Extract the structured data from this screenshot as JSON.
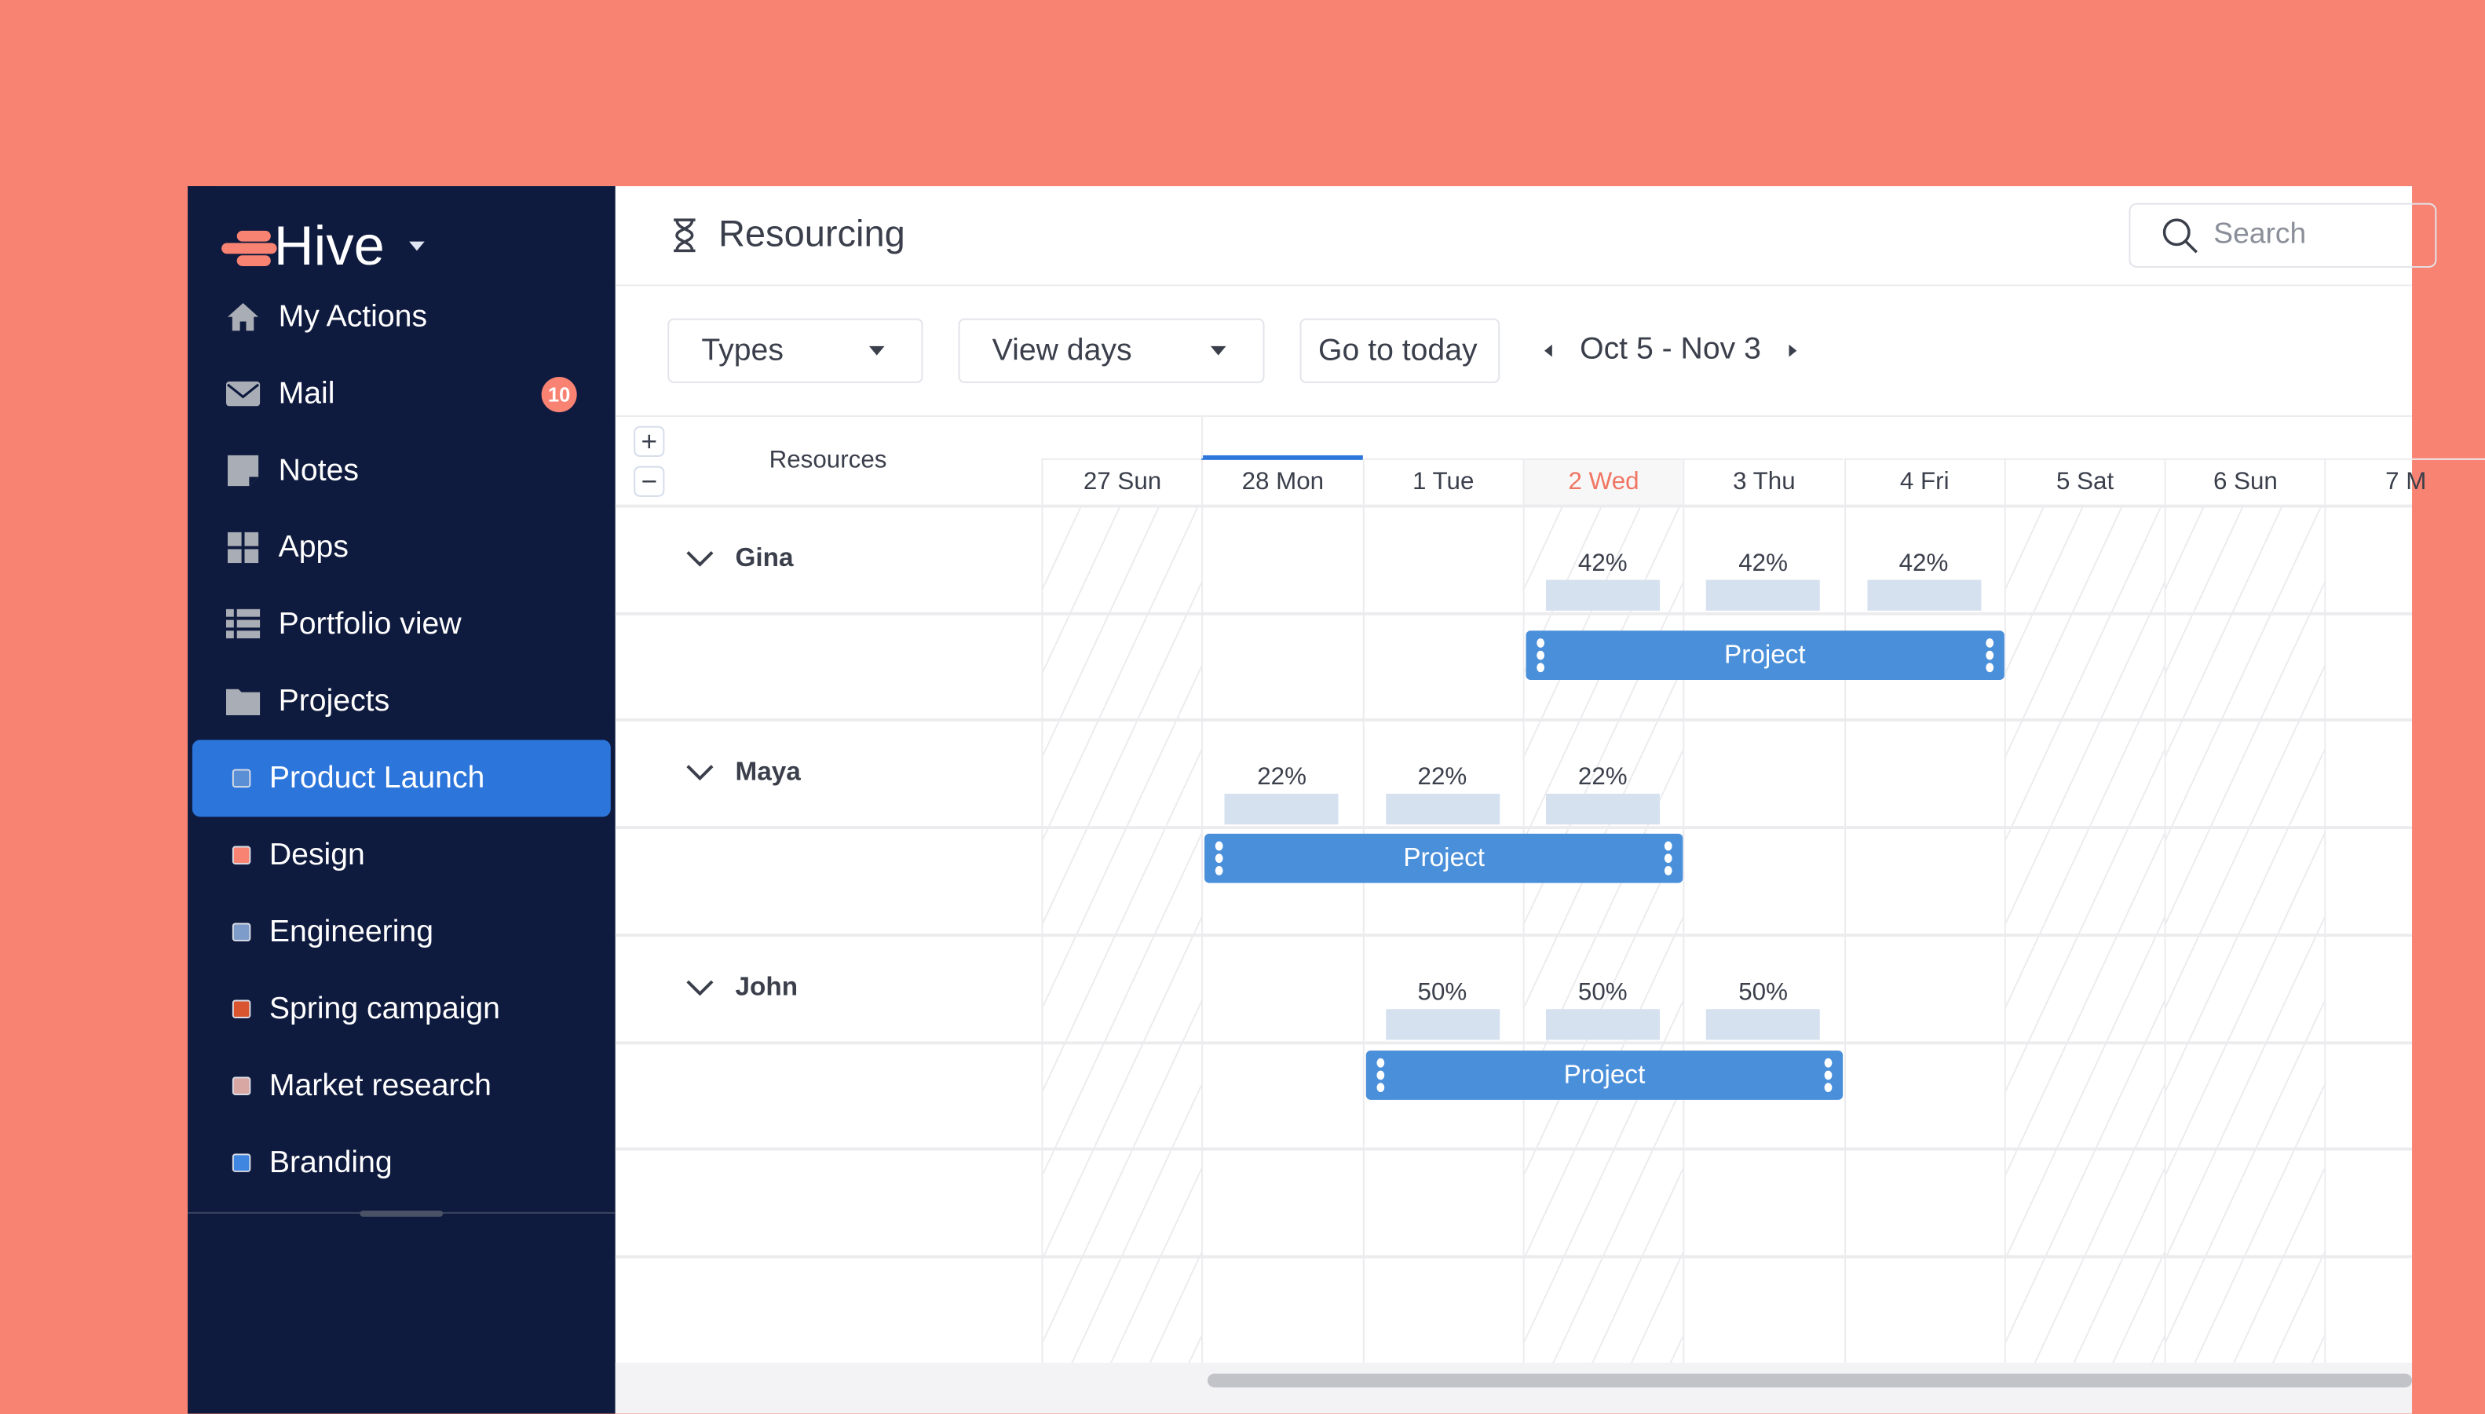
{
  "app": {
    "name": "Hive",
    "brand_color": "#F98373",
    "sidebar_color": "#0E1A3E",
    "accent": "#2C75DB"
  },
  "sidebar": {
    "nav": [
      {
        "label": "My Actions",
        "icon": "home-icon"
      },
      {
        "label": "Mail",
        "icon": "mail-icon",
        "badge": "10"
      },
      {
        "label": "Notes",
        "icon": "notes-icon"
      },
      {
        "label": "Apps",
        "icon": "apps-icon"
      },
      {
        "label": "Portfolio view",
        "icon": "portfolio-icon"
      },
      {
        "label": "Projects",
        "icon": "folder-icon"
      }
    ],
    "projects": [
      {
        "label": "Product Launch",
        "color": "#5A8FD6",
        "active": true
      },
      {
        "label": "Design",
        "color": "#F98373"
      },
      {
        "label": "Engineering",
        "color": "#7E9CC9"
      },
      {
        "label": "Spring campaign",
        "color": "#D9552F"
      },
      {
        "label": "Market research",
        "color": "#D9A7A3"
      },
      {
        "label": "Branding",
        "color": "#3F86E0"
      }
    ]
  },
  "header": {
    "title": "Resourcing",
    "search_placeholder": "Search"
  },
  "toolbar": {
    "types": "Types",
    "view": "View days",
    "today": "Go to today",
    "range": "Oct 5 - Nov 3"
  },
  "grid": {
    "resources_label": "Resources",
    "zoom_in": "+",
    "zoom_out": "−",
    "days": [
      {
        "label": "27 Sun",
        "hatched": true
      },
      {
        "label": "28 Mon",
        "current_marker": true
      },
      {
        "label": "1 Tue"
      },
      {
        "label": "2 Wed",
        "today": true,
        "hatched": true
      },
      {
        "label": "3 Thu"
      },
      {
        "label": "4 Fri"
      },
      {
        "label": "5 Sat",
        "hatched": true
      },
      {
        "label": "6 Sun",
        "hatched": true
      },
      {
        "label": "7 M"
      }
    ],
    "people": [
      {
        "name": "Gina",
        "allocations": [
          {
            "day": 3,
            "pct": "42%"
          },
          {
            "day": 4,
            "pct": "42%"
          },
          {
            "day": 5,
            "pct": "42%"
          }
        ],
        "project": {
          "label": "Project",
          "start": 3,
          "end": 5
        }
      },
      {
        "name": "Maya",
        "allocations": [
          {
            "day": 1,
            "pct": "22%"
          },
          {
            "day": 2,
            "pct": "22%"
          },
          {
            "day": 3,
            "pct": "22%"
          }
        ],
        "project": {
          "label": "Project",
          "start": 1,
          "end": 3
        }
      },
      {
        "name": "John",
        "allocations": [
          {
            "day": 2,
            "pct": "50%"
          },
          {
            "day": 3,
            "pct": "50%"
          },
          {
            "day": 4,
            "pct": "50%"
          }
        ],
        "project": {
          "label": "Project",
          "start": 2,
          "end": 4
        }
      }
    ]
  }
}
